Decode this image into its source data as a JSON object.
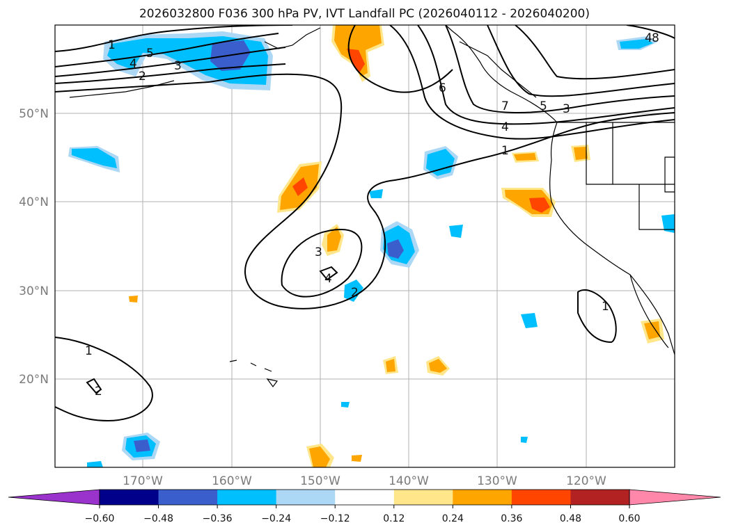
{
  "title": "2026032800 F036 300 hPa PV, IVT Landfall PC (2026040112 - 2026040200)",
  "lat_labels": [
    "50°N",
    "40°N",
    "30°N",
    "20°N"
  ],
  "lon_labels": [
    "170°W",
    "160°W",
    "150°W",
    "140°W",
    "130°W",
    "120°W"
  ],
  "colorbar": {
    "tick_labels": [
      "−0.60",
      "−0.48",
      "−0.36",
      "−0.24",
      "−0.12",
      "0.12",
      "0.24",
      "0.36",
      "0.48",
      "0.60"
    ],
    "colors": [
      "#9933cc",
      "#00008b",
      "#3a5fcd",
      "#00bfff",
      "#add8f5",
      "#ffffff",
      "#ffe68a",
      "#ffa500",
      "#ff4500",
      "#b22222",
      "#ff88aa"
    ]
  },
  "contour_labels": [
    "1",
    "5",
    "4",
    "2",
    "3",
    "6",
    "7",
    "5",
    "3",
    "4",
    "1",
    "3",
    "4",
    "2",
    "1",
    "2",
    "1",
    "4",
    "8"
  ],
  "colors": {
    "land_line": "#000000",
    "grid": "#b0b0b0"
  }
}
